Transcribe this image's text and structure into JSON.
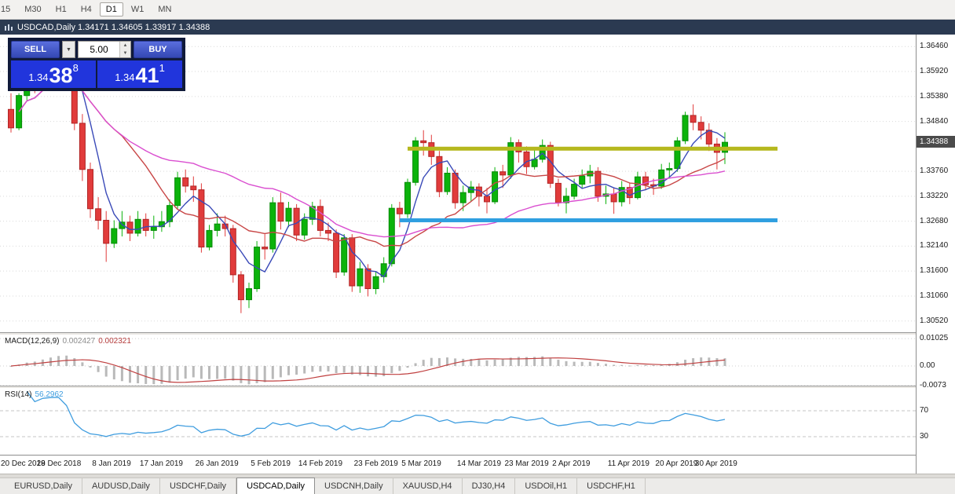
{
  "toolbar": {
    "timeframes": [
      {
        "label": "15",
        "active": false
      },
      {
        "label": "M30",
        "active": false
      },
      {
        "label": "H1",
        "active": false
      },
      {
        "label": "H4",
        "active": false
      },
      {
        "label": "D1",
        "active": true
      },
      {
        "label": "W1",
        "active": false
      },
      {
        "label": "MN",
        "active": false
      }
    ]
  },
  "chart_header": {
    "title": "USDCAD,Daily  1.34171 1.34605 1.33917 1.34388"
  },
  "trade_panel": {
    "sell_label": "SELL",
    "buy_label": "BUY",
    "volume": "5.00",
    "sell_price": {
      "big_figure": "1.34",
      "pips": "38",
      "pipette": "8"
    },
    "buy_price": {
      "big_figure": "1.34",
      "pips": "41",
      "pipette": "1"
    }
  },
  "price_axis": {
    "ticks": [
      "1.36460",
      "1.35920",
      "1.35380",
      "1.34840",
      "1.33760",
      "1.33220",
      "1.32680",
      "1.32140",
      "1.31600",
      "1.31060",
      "1.30520"
    ],
    "current": "1.34388"
  },
  "chart_data": {
    "type": "candlestick",
    "symbol": "USDCAD",
    "period": "Daily",
    "ylim": [
      1.3026,
      1.3672
    ],
    "ohlc": [
      [
        1.351,
        1.3545,
        1.346,
        1.347
      ],
      [
        1.347,
        1.3545,
        1.3465,
        1.354
      ],
      [
        1.354,
        1.359,
        1.353,
        1.3575
      ],
      [
        1.3575,
        1.36,
        1.3545,
        1.3555
      ],
      [
        1.3555,
        1.3625,
        1.355,
        1.3615
      ],
      [
        1.3615,
        1.3645,
        1.36,
        1.3638
      ],
      [
        1.3638,
        1.3664,
        1.36,
        1.3642
      ],
      [
        1.3642,
        1.366,
        1.3595,
        1.3608
      ],
      [
        1.3608,
        1.362,
        1.3465,
        1.348
      ],
      [
        1.348,
        1.35,
        1.3355,
        1.338
      ],
      [
        1.338,
        1.3395,
        1.3275,
        1.3295
      ],
      [
        1.3295,
        1.332,
        1.325,
        1.327
      ],
      [
        1.327,
        1.329,
        1.318,
        1.322
      ],
      [
        1.322,
        1.327,
        1.321,
        1.3252
      ],
      [
        1.3252,
        1.329,
        1.3235,
        1.3266
      ],
      [
        1.3266,
        1.328,
        1.3225,
        1.3242
      ],
      [
        1.3242,
        1.329,
        1.3235,
        1.3272
      ],
      [
        1.3272,
        1.3285,
        1.3235,
        1.3248
      ],
      [
        1.3248,
        1.328,
        1.323,
        1.3256
      ],
      [
        1.3256,
        1.329,
        1.3245,
        1.3267
      ],
      [
        1.3267,
        1.3315,
        1.3255,
        1.3302
      ],
      [
        1.3302,
        1.3375,
        1.3295,
        1.3362
      ],
      [
        1.3362,
        1.338,
        1.333,
        1.3344
      ],
      [
        1.3344,
        1.3365,
        1.331,
        1.3336
      ],
      [
        1.3336,
        1.335,
        1.32,
        1.3212
      ],
      [
        1.3212,
        1.326,
        1.3205,
        1.3248
      ],
      [
        1.3248,
        1.3285,
        1.3235,
        1.3262
      ],
      [
        1.3262,
        1.328,
        1.3235,
        1.3252
      ],
      [
        1.3252,
        1.326,
        1.3135,
        1.3152
      ],
      [
        1.3152,
        1.316,
        1.3069,
        1.3098
      ],
      [
        1.3098,
        1.3135,
        1.308,
        1.3122
      ],
      [
        1.3122,
        1.3225,
        1.3115,
        1.3212
      ],
      [
        1.3212,
        1.324,
        1.3185,
        1.3208
      ],
      [
        1.3208,
        1.332,
        1.32,
        1.3308
      ],
      [
        1.3308,
        1.333,
        1.325,
        1.3268
      ],
      [
        1.3268,
        1.331,
        1.3255,
        1.3296
      ],
      [
        1.3296,
        1.3305,
        1.3225,
        1.3238
      ],
      [
        1.3238,
        1.3285,
        1.3228,
        1.3272
      ],
      [
        1.3272,
        1.331,
        1.326,
        1.33
      ],
      [
        1.33,
        1.3315,
        1.3235,
        1.3248
      ],
      [
        1.3248,
        1.3265,
        1.3225,
        1.3242
      ],
      [
        1.3242,
        1.325,
        1.3145,
        1.3158
      ],
      [
        1.3158,
        1.324,
        1.315,
        1.3232
      ],
      [
        1.3232,
        1.324,
        1.3115,
        1.3128
      ],
      [
        1.3128,
        1.318,
        1.3113,
        1.3165
      ],
      [
        1.3165,
        1.3175,
        1.3105,
        1.3122
      ],
      [
        1.3122,
        1.316,
        1.311,
        1.3148
      ],
      [
        1.3148,
        1.319,
        1.3135,
        1.3176
      ],
      [
        1.3176,
        1.3305,
        1.317,
        1.3296
      ],
      [
        1.3296,
        1.331,
        1.3255,
        1.3284
      ],
      [
        1.3284,
        1.336,
        1.3275,
        1.3352
      ],
      [
        1.3352,
        1.345,
        1.3345,
        1.3442
      ],
      [
        1.3442,
        1.3465,
        1.341,
        1.3438
      ],
      [
        1.3438,
        1.3455,
        1.339,
        1.3408
      ],
      [
        1.3408,
        1.342,
        1.332,
        1.3332
      ],
      [
        1.3332,
        1.3385,
        1.3325,
        1.3372
      ],
      [
        1.3372,
        1.338,
        1.3295,
        1.3308
      ],
      [
        1.3308,
        1.3345,
        1.329,
        1.333
      ],
      [
        1.333,
        1.3355,
        1.331,
        1.3342
      ],
      [
        1.3342,
        1.335,
        1.33,
        1.3322
      ],
      [
        1.3322,
        1.334,
        1.3285,
        1.331
      ],
      [
        1.331,
        1.3385,
        1.3305,
        1.3375
      ],
      [
        1.3375,
        1.339,
        1.334,
        1.3368
      ],
      [
        1.3368,
        1.345,
        1.336,
        1.3438
      ],
      [
        1.3438,
        1.3445,
        1.3395,
        1.3418
      ],
      [
        1.3418,
        1.343,
        1.337,
        1.3386
      ],
      [
        1.3386,
        1.3425,
        1.338,
        1.3402
      ],
      [
        1.3402,
        1.3445,
        1.3395,
        1.3432
      ],
      [
        1.3432,
        1.344,
        1.334,
        1.335
      ],
      [
        1.335,
        1.336,
        1.33,
        1.3308
      ],
      [
        1.3308,
        1.334,
        1.3285,
        1.3322
      ],
      [
        1.3322,
        1.336,
        1.3315,
        1.3348
      ],
      [
        1.3348,
        1.338,
        1.334,
        1.3366
      ],
      [
        1.3366,
        1.339,
        1.335,
        1.3376
      ],
      [
        1.3376,
        1.3385,
        1.331,
        1.3322
      ],
      [
        1.3322,
        1.3345,
        1.3305,
        1.3327
      ],
      [
        1.3327,
        1.334,
        1.3284,
        1.331
      ],
      [
        1.331,
        1.3355,
        1.33,
        1.3341
      ],
      [
        1.3341,
        1.335,
        1.3305,
        1.3319
      ],
      [
        1.3319,
        1.3375,
        1.3315,
        1.3364
      ],
      [
        1.3364,
        1.3375,
        1.3335,
        1.3347
      ],
      [
        1.3347,
        1.336,
        1.3325,
        1.3344
      ],
      [
        1.3344,
        1.3392,
        1.3338,
        1.3379
      ],
      [
        1.3379,
        1.3395,
        1.336,
        1.3382
      ],
      [
        1.3382,
        1.345,
        1.3375,
        1.3442
      ],
      [
        1.3442,
        1.3505,
        1.3435,
        1.3497
      ],
      [
        1.3497,
        1.3521,
        1.3465,
        1.3482
      ],
      [
        1.3482,
        1.3495,
        1.3445,
        1.3465
      ],
      [
        1.3465,
        1.348,
        1.342,
        1.3435
      ],
      [
        1.3435,
        1.3448,
        1.338,
        1.3417
      ],
      [
        1.34171,
        1.34605,
        1.33917,
        1.34388
      ]
    ],
    "overlays": {
      "horizontal_lines": [
        {
          "price": 1.3425,
          "start_index": 50,
          "color": "#b5b81e",
          "role": "resistance"
        },
        {
          "price": 1.327,
          "start_index": 49,
          "color": "#2f9fe0",
          "role": "support"
        }
      ]
    },
    "indicators": {
      "macd": {
        "label": "MACD(12,26,9)",
        "values": [
          "0.002427",
          "0.002321"
        ],
        "axis": [
          "0.01025",
          "0.00",
          "-0.0073"
        ]
      },
      "rsi": {
        "label": "RSI(14)",
        "value": "56.2962",
        "levels": [
          70,
          30
        ],
        "axis": [
          "70",
          "30"
        ]
      }
    },
    "x_axis_labels": [
      {
        "text": "20 Dec 2018",
        "index": 0
      },
      {
        "text": "29 Dec 2018",
        "index": 6
      },
      {
        "text": "8 Jan 2019",
        "index": 13
      },
      {
        "text": "17 Jan 2019",
        "index": 19
      },
      {
        "text": "26 Jan 2019",
        "index": 26
      },
      {
        "text": "5 Feb 2019",
        "index": 33
      },
      {
        "text": "14 Feb 2019",
        "index": 39
      },
      {
        "text": "23 Feb 2019",
        "index": 46
      },
      {
        "text": "5 Mar 2019",
        "index": 52
      },
      {
        "text": "14 Mar 2019",
        "index": 59
      },
      {
        "text": "23 Mar 2019",
        "index": 65
      },
      {
        "text": "2 Apr 2019",
        "index": 71
      },
      {
        "text": "11 Apr 2019",
        "index": 78
      },
      {
        "text": "20 Apr 2019",
        "index": 84
      },
      {
        "text": "30 Apr 2019",
        "index": 89
      }
    ]
  },
  "tabbar": {
    "tabs": [
      {
        "label": "EURUSD,Daily",
        "active": false
      },
      {
        "label": "AUDUSD,Daily",
        "active": false
      },
      {
        "label": "USDCHF,Daily",
        "active": false
      },
      {
        "label": "USDCAD,Daily",
        "active": true
      },
      {
        "label": "USDCNH,Daily",
        "active": false
      },
      {
        "label": "XAUUSD,H4",
        "active": false
      },
      {
        "label": "DJ30,H4",
        "active": false
      },
      {
        "label": "USDOil,H1",
        "active": false
      },
      {
        "label": "USDCHF,H1",
        "active": false
      }
    ]
  },
  "colors": {
    "up": "#0bb30b",
    "up_border": "#088a08",
    "down": "#e13b3b",
    "down_border": "#b02525",
    "ma_fast": "#3a4ab8",
    "ma_mid": "#c84646",
    "ma_slow": "#da4fd0",
    "macd_hist": "#b9b9b9",
    "macd_signal": "#c04040",
    "rsi_line": "#3f9ddf",
    "grid": "#d9d9d9"
  }
}
